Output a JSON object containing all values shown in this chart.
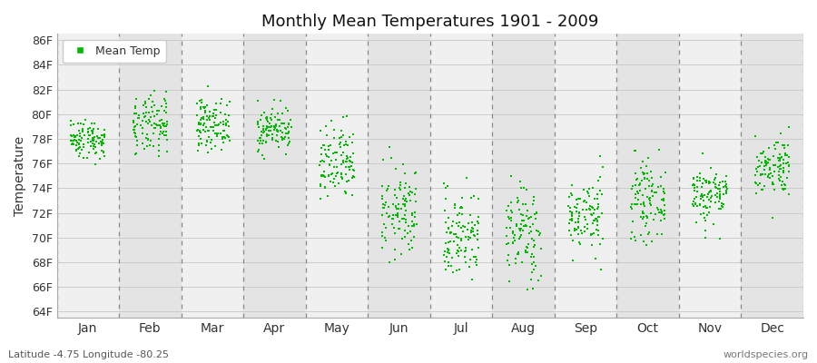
{
  "title": "Monthly Mean Temperatures 1901 - 2009",
  "ylabel": "Temperature",
  "xlabel_labels": [
    "Jan",
    "Feb",
    "Mar",
    "Apr",
    "May",
    "Jun",
    "Jul",
    "Aug",
    "Sep",
    "Oct",
    "Nov",
    "Dec"
  ],
  "ytick_labels": [
    "64F",
    "66F",
    "68F",
    "70F",
    "72F",
    "74F",
    "76F",
    "78F",
    "80F",
    "82F",
    "84F",
    "86F"
  ],
  "ytick_values": [
    64,
    66,
    68,
    70,
    72,
    74,
    76,
    78,
    80,
    82,
    84,
    86
  ],
  "ylim": [
    63.5,
    86.5
  ],
  "dot_color": "#00bb00",
  "dot_size": 3,
  "background_color": "#ffffff",
  "plot_bg_color_light": "#f0f0f0",
  "plot_bg_color_dark": "#e4e4e4",
  "dashed_line_color": "#888888",
  "legend_label": "Mean Temp",
  "bottom_left_text": "Latitude -4.75 Longitude -80.25",
  "bottom_right_text": "worldspecies.org",
  "monthly_means": [
    78.0,
    79.0,
    79.2,
    78.8,
    75.8,
    72.0,
    70.2,
    70.4,
    71.8,
    73.0,
    73.5,
    75.8
  ],
  "monthly_stds": [
    0.8,
    1.2,
    1.0,
    0.9,
    1.6,
    1.8,
    1.8,
    2.0,
    1.5,
    1.5,
    1.2,
    1.2
  ],
  "n_years": 109,
  "seed": 42
}
